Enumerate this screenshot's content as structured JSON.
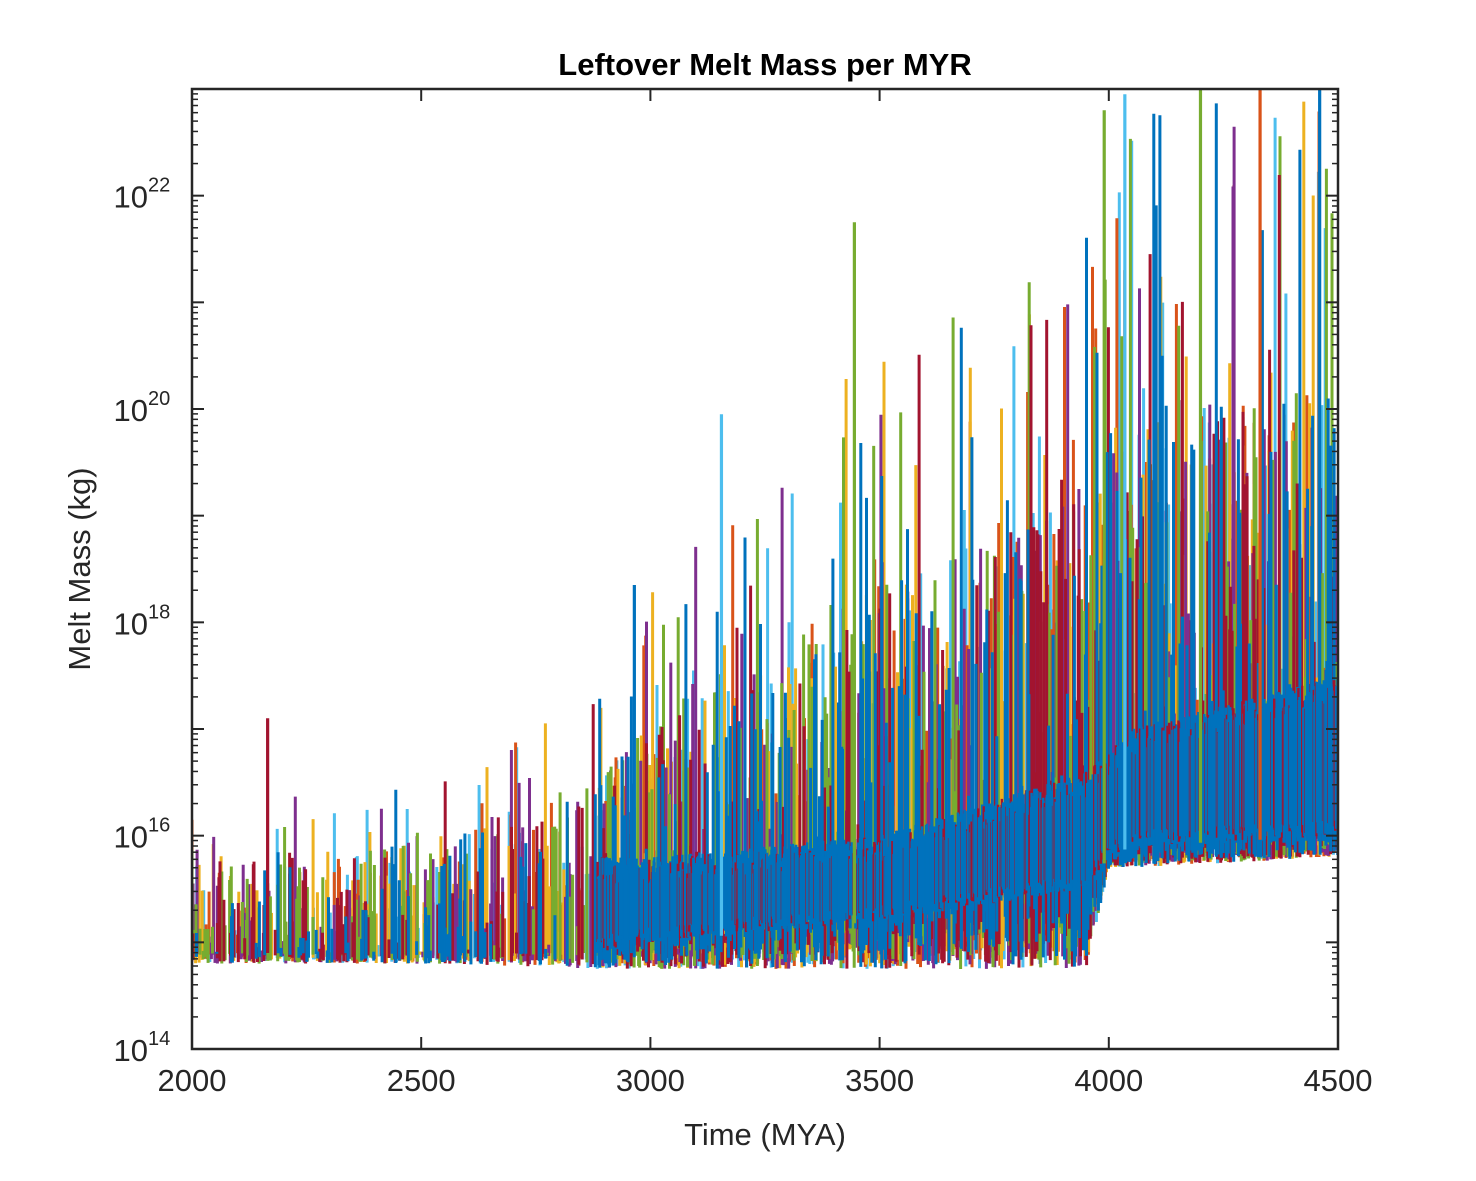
{
  "chart_data": {
    "type": "line",
    "title": "Leftover Melt Mass per MYR",
    "xlabel": "Time (MYA)",
    "ylabel": "Melt Mass (kg)",
    "xlim": [
      2000,
      4500
    ],
    "ylim": [
      100000000000000.0,
      1e+23
    ],
    "yscale": "log",
    "x_ticks": [
      {
        "value": 2000,
        "label": "2000"
      },
      {
        "value": 2500,
        "label": "2500"
      },
      {
        "value": 3000,
        "label": "3000"
      },
      {
        "value": 3500,
        "label": "3500"
      },
      {
        "value": 4000,
        "label": "4000"
      },
      {
        "value": 4500,
        "label": "4500"
      }
    ],
    "y_ticks": [
      {
        "value": 100000000000000.0,
        "base": "10",
        "exp": "14"
      },
      {
        "value": 1e+16,
        "base": "10",
        "exp": "16"
      },
      {
        "value": 1e+18,
        "base": "10",
        "exp": "18"
      },
      {
        "value": 1e+20,
        "base": "10",
        "exp": "20"
      },
      {
        "value": 1e+22,
        "base": "10",
        "exp": "22"
      }
    ],
    "grid": false,
    "series_colors": [
      "#0072BD",
      "#D95319",
      "#EDB120",
      "#7E2F8E",
      "#77AC30",
      "#4DBEEE",
      "#A2142F"
    ],
    "envelope": {
      "description": "approximate log10 ranges of the dense overlapping simulation traces",
      "x": [
        2000,
        2500,
        2880,
        3000,
        3500,
        3950,
        4000,
        4050,
        4500
      ],
      "floor_log10": [
        14.8,
        14.8,
        14.75,
        14.75,
        14.75,
        14.75,
        15.7,
        15.7,
        15.8
      ],
      "band_low_log10": [
        14.9,
        14.9,
        14.9,
        15.0,
        15.2,
        15.5,
        15.8,
        15.9,
        16.0
      ],
      "band_high_log10": [
        15.3,
        15.4,
        15.8,
        15.8,
        16.0,
        16.6,
        16.8,
        17.0,
        17.5
      ],
      "spike_max_log10": [
        16.3,
        16.5,
        17.3,
        18.3,
        20.7,
        22.0,
        22.8,
        22.9,
        22.9
      ]
    },
    "notable_spikes": [
      {
        "x": 2165,
        "log10": 17.1,
        "color": "#A2142F"
      },
      {
        "x": 2965,
        "log10": 18.35,
        "color": "#0072BD"
      },
      {
        "x": 3155,
        "log10": 19.95,
        "color": "#4DBEEE"
      },
      {
        "x": 3445,
        "log10": 21.75,
        "color": "#77AC30"
      },
      {
        "x": 3990,
        "log10": 22.8,
        "color": "#77AC30"
      },
      {
        "x": 4035,
        "log10": 22.95,
        "color": "#4DBEEE"
      },
      {
        "x": 4200,
        "log10": 23.0,
        "color": "#77AC30"
      },
      {
        "x": 4330,
        "log10": 23.0,
        "color": "#D95319"
      },
      {
        "x": 4460,
        "log10": 23.0,
        "color": "#0072BD"
      }
    ]
  }
}
